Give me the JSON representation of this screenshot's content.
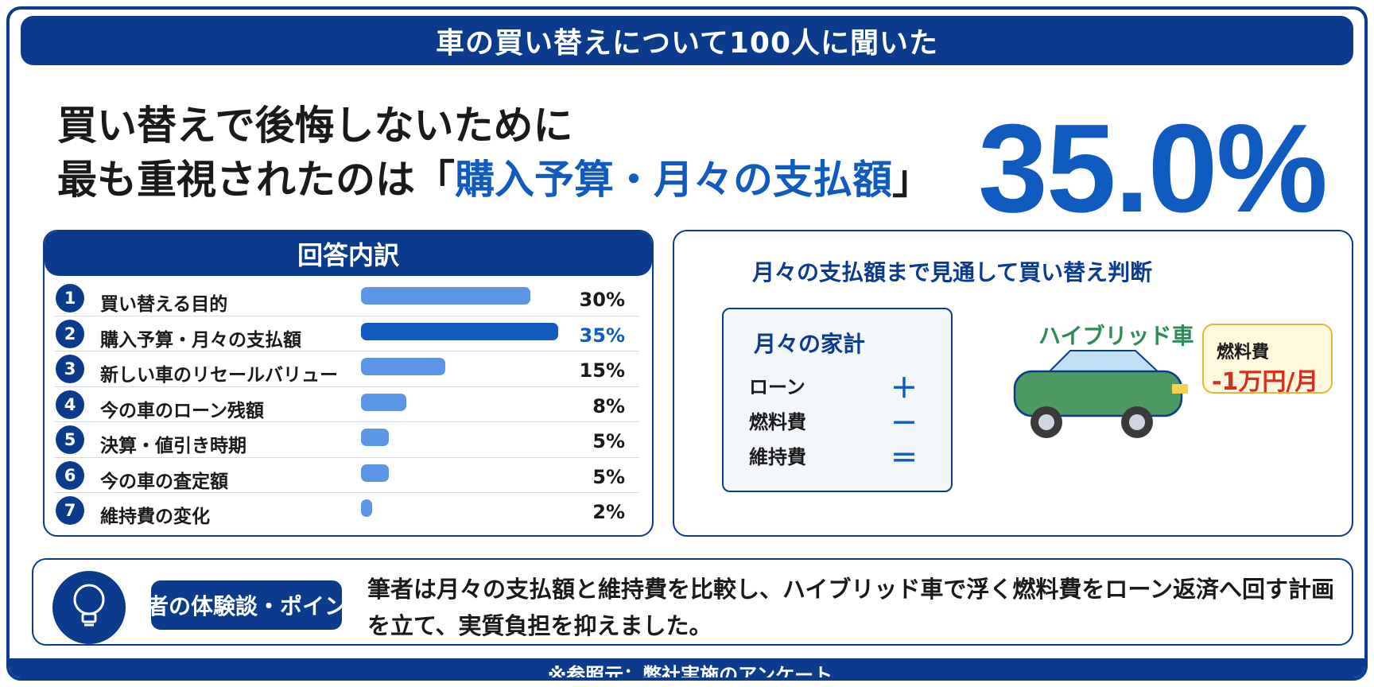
{
  "title": "車の買い替えについて100人に聞いた",
  "headline": {
    "line1": "買い替えで後悔しないために",
    "line2_prefix": "最も重視されたのは「",
    "line2_highlight": "購入予算・月々の支払額",
    "line2_suffix": "」"
  },
  "big_percent": "35.0%",
  "breakdown": {
    "heading": "回答内訳",
    "items": [
      {
        "num": "1",
        "label": "買い替える目的",
        "pct_text": "30%",
        "value": 30,
        "highlight": false
      },
      {
        "num": "2",
        "label": "購入予算・月々の支払額",
        "pct_text": "35%",
        "value": 35,
        "highlight": true
      },
      {
        "num": "3",
        "label": "新しい車のリセールバリュー",
        "pct_text": "15%",
        "value": 15,
        "highlight": false
      },
      {
        "num": "4",
        "label": "今の車のローン残額",
        "pct_text": "8%",
        "value": 8,
        "highlight": false
      },
      {
        "num": "5",
        "label": "決算・値引き時期",
        "pct_text": "5%",
        "value": 5,
        "highlight": false
      },
      {
        "num": "6",
        "label": "今の車の査定額",
        "pct_text": "5%",
        "value": 5,
        "highlight": false
      },
      {
        "num": "7",
        "label": "維持費の変化",
        "pct_text": "2%",
        "value": 2,
        "highlight": false
      }
    ]
  },
  "right_panel": {
    "title": "月々の支払額まで見通して買い替え判断",
    "budget": {
      "title": "月々の家計",
      "items": [
        {
          "label": "ローン",
          "symbol": "＋"
        },
        {
          "label": "燃料費",
          "symbol": "－"
        },
        {
          "label": "維持費",
          "symbol": "＝"
        }
      ]
    },
    "hybrid_label": "ハイブリッド車",
    "fuel": {
      "label": "燃料費",
      "value": "-1万円/月"
    }
  },
  "experience": {
    "tag": "筆者の体験談・ポイント",
    "text": "筆者は月々の支払額と維持費を比較し、ハイブリッド車で浮く燃料費をローン返済へ回す計画を立て、実質負担を抑えました。"
  },
  "footer": "※参照元：弊社実施のアンケート",
  "colors": {
    "primary": "#0b3b8c",
    "accent": "#0f5bbf",
    "bar": "#5b97e6",
    "car": "#4a9a62",
    "fuel_red": "#d6301e"
  },
  "icons": [
    "lightbulb-icon",
    "car-icon"
  ]
}
